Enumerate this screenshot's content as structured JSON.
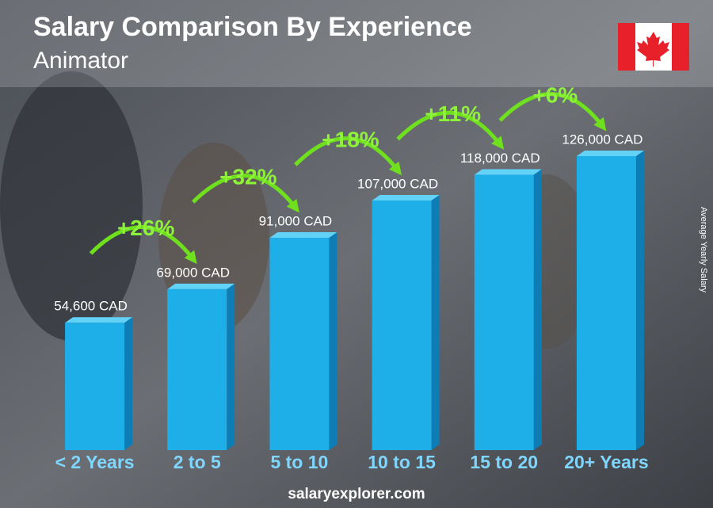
{
  "chart_data": {
    "type": "bar3d",
    "title": "Salary Comparison By Experience",
    "subtitle": "Animator",
    "y_axis_label": "Average Yearly Salary",
    "source": "salaryexplorer.com",
    "categories": [
      "< 2 Years",
      "2 to 5",
      "5 to 10",
      "10 to 15",
      "15 to 20",
      "20+ Years"
    ],
    "values": [
      54600,
      69000,
      91000,
      107000,
      118000,
      126000
    ],
    "value_labels": [
      "54,600 CAD",
      "69,000 CAD",
      "91,000 CAD",
      "107,000 CAD",
      "118,000 CAD",
      "126,000 CAD"
    ],
    "changes": [
      "+26%",
      "+32%",
      "+18%",
      "+11%",
      "+6%"
    ],
    "color": "#1eaee8"
  }
}
